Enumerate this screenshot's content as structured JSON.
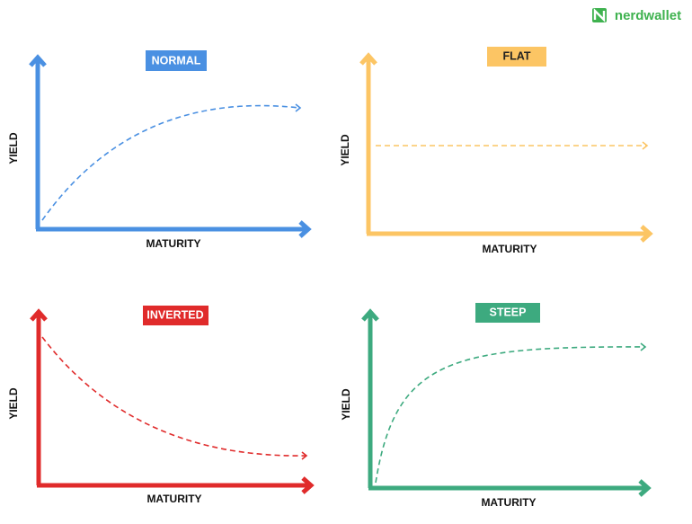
{
  "logo": "nerdwallet",
  "panels": [
    {
      "title": "NORMAL",
      "y_label": "YIELD",
      "x_label": "MATURITY"
    },
    {
      "title": "FLAT",
      "y_label": "YIELD",
      "x_label": "MATURITY"
    },
    {
      "title": "INVERTED",
      "y_label": "YIELD",
      "x_label": "MATURITY"
    },
    {
      "title": "STEEP",
      "y_label": "YIELD",
      "x_label": "MATURITY"
    }
  ]
}
